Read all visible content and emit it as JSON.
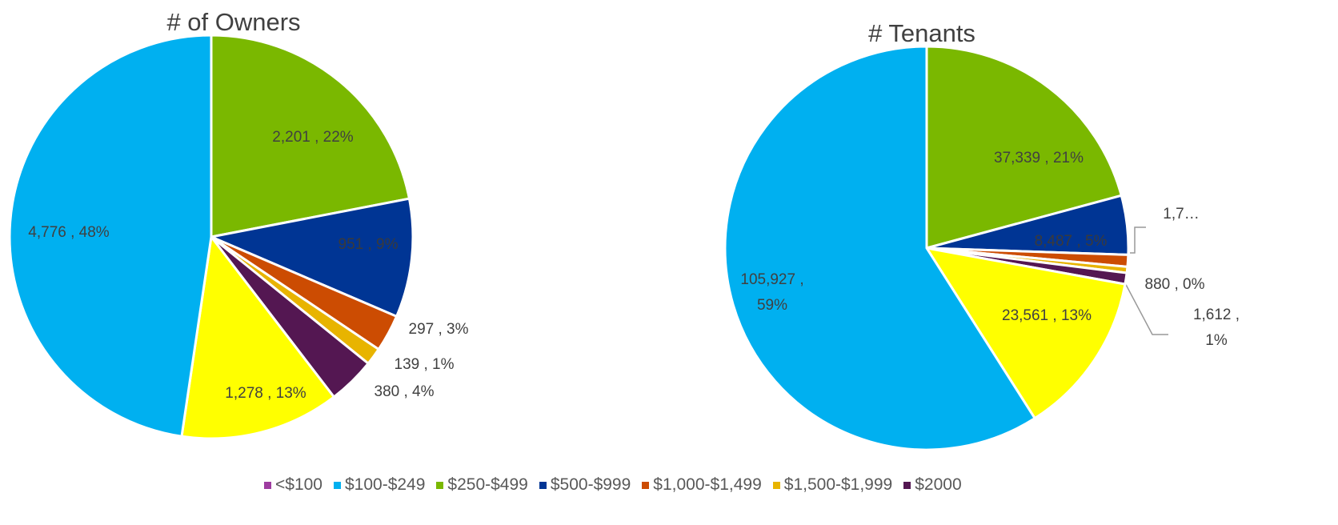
{
  "chart_data": [
    {
      "type": "pie",
      "title": "# of Owners",
      "categories": [
        "$250-$499",
        "$500-$999",
        "$1,000-$1,499",
        "$1,500-$1,999",
        "$2000",
        null,
        "$100-$249"
      ],
      "values": [
        2201,
        951,
        297,
        139,
        380,
        1278,
        4776
      ],
      "value_labels": [
        "2,201 , 22%",
        "951 , 9%",
        "297 , 3%",
        "139 , 1%",
        "380 , 4%",
        "1,278 , 13%",
        "4,776 , 48%"
      ],
      "colors": [
        "#7ab800",
        "#003594",
        "#cc4c02",
        "#e8b400",
        "#541752",
        "#ffff00",
        "#00b0f0"
      ]
    },
    {
      "type": "pie",
      "title": "# Tenants",
      "categories": [
        "$250-$499",
        "$500-$999",
        "$1,000-$1,499",
        "$1,500-$1,999",
        "$2000",
        null,
        "$100-$249"
      ],
      "values": [
        37339,
        8487,
        1700,
        880,
        1612,
        23561,
        105927
      ],
      "value_labels": [
        "37,339 , 21%",
        "8,487 , 5%",
        "1,7…",
        "880 , 0%",
        "1,612 , 1%",
        "23,561 , 13%",
        "105,927 , 59%"
      ],
      "colors": [
        "#7ab800",
        "#003594",
        "#cc4c02",
        "#e8b400",
        "#541752",
        "#ffff00",
        "#00b0f0"
      ]
    }
  ],
  "legend": {
    "labels": [
      "<$100",
      "$100-$249",
      "$250-$499",
      "$500-$999",
      "$1,000-$1,499",
      "$1,500-$1,999",
      "$2000"
    ],
    "colors": [
      "#9e3ca0",
      "#00b0f0",
      "#7ab800",
      "#003594",
      "#cc4c02",
      "#e8b400",
      "#541752"
    ]
  }
}
